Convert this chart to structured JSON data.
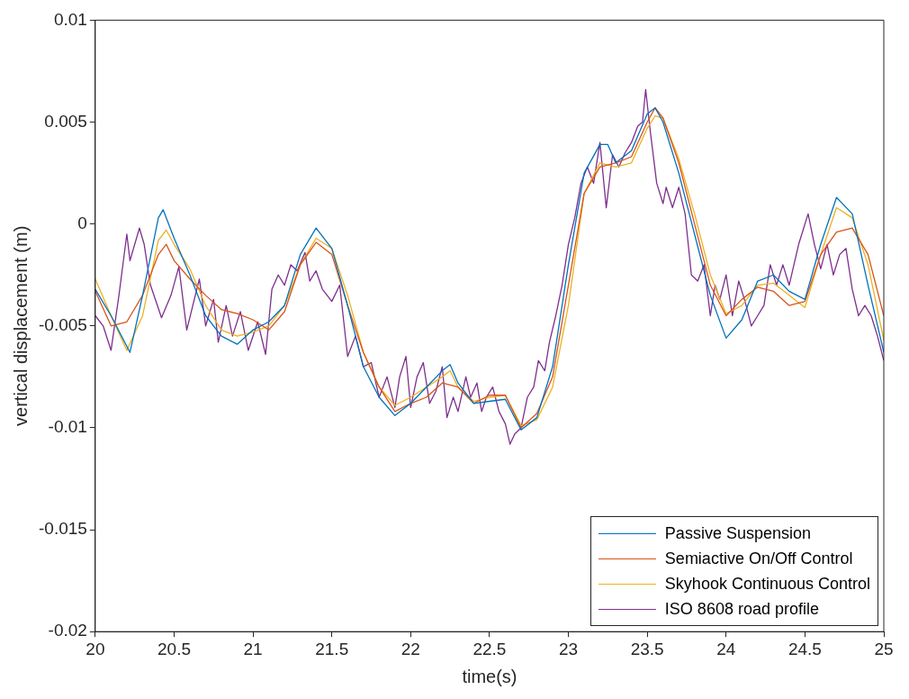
{
  "chart_data": {
    "type": "line",
    "xlabel": "time(s)",
    "ylabel": "vertical displacement (m)",
    "xlim": [
      20,
      25
    ],
    "ylim": [
      -0.02,
      0.01
    ],
    "xticks": [
      20,
      20.5,
      21,
      21.5,
      22,
      22.5,
      23,
      23.5,
      24,
      24.5,
      25
    ],
    "yticks": [
      -0.02,
      -0.015,
      -0.01,
      -0.005,
      0,
      0.005,
      0.01
    ],
    "grid": false,
    "legend": "bottom right",
    "marker": "none",
    "line_style": "solid",
    "series": [
      {
        "name": "Passive Suspension",
        "color": "#0072bd",
        "x": [
          20,
          20.1,
          20.22,
          20.3,
          20.4,
          20.43,
          20.5,
          20.6,
          20.7,
          20.8,
          20.9,
          21,
          21.1,
          21.2,
          21.3,
          21.4,
          21.5,
          21.6,
          21.7,
          21.8,
          21.9,
          22,
          22.1,
          22.2,
          22.25,
          22.3,
          22.4,
          22.5,
          22.6,
          22.7,
          22.8,
          22.9,
          23,
          23.1,
          23.2,
          23.25,
          23.3,
          23.4,
          23.5,
          23.55,
          23.6,
          23.7,
          23.8,
          23.9,
          24,
          24.1,
          24.2,
          24.3,
          24.4,
          24.5,
          24.6,
          24.7,
          24.8,
          24.9,
          25
        ],
        "values": [
          -0.0032,
          -0.0045,
          -0.0063,
          -0.0035,
          0.0003,
          0.0007,
          -0.0007,
          -0.0025,
          -0.0045,
          -0.0055,
          -0.0059,
          -0.0052,
          -0.0048,
          -0.004,
          -0.0015,
          -0.0002,
          -0.0012,
          -0.004,
          -0.007,
          -0.0085,
          -0.0094,
          -0.0088,
          -0.008,
          -0.0072,
          -0.0069,
          -0.0078,
          -0.0088,
          -0.0087,
          -0.0086,
          -0.0101,
          -0.0095,
          -0.007,
          -0.002,
          0.0025,
          0.0039,
          0.0039,
          0.003,
          0.0036,
          0.0054,
          0.0057,
          0.005,
          0.0025,
          -0.0005,
          -0.0035,
          -0.0056,
          -0.0047,
          -0.0028,
          -0.0025,
          -0.0033,
          -0.0037,
          -0.001,
          0.0013,
          0.0005,
          -0.003,
          -0.0063
        ]
      },
      {
        "name": "Semiactive On/Off Control",
        "color": "#d95319",
        "x": [
          20,
          20.1,
          20.2,
          20.3,
          20.4,
          20.45,
          20.5,
          20.6,
          20.7,
          20.8,
          20.9,
          21,
          21.1,
          21.2,
          21.3,
          21.4,
          21.5,
          21.6,
          21.7,
          21.8,
          21.9,
          22,
          22.1,
          22.2,
          22.3,
          22.4,
          22.5,
          22.6,
          22.7,
          22.8,
          22.9,
          23,
          23.1,
          23.2,
          23.3,
          23.4,
          23.5,
          23.55,
          23.6,
          23.7,
          23.8,
          23.9,
          24,
          24.1,
          24.2,
          24.3,
          24.4,
          24.5,
          24.6,
          24.7,
          24.8,
          24.9,
          25
        ],
        "values": [
          -0.0033,
          -0.005,
          -0.0048,
          -0.0035,
          -0.0015,
          -0.001,
          -0.0018,
          -0.0027,
          -0.0035,
          -0.0042,
          -0.0044,
          -0.0047,
          -0.0052,
          -0.0043,
          -0.002,
          -0.0009,
          -0.0015,
          -0.004,
          -0.0063,
          -0.008,
          -0.0092,
          -0.0088,
          -0.0085,
          -0.0078,
          -0.008,
          -0.0088,
          -0.0084,
          -0.0084,
          -0.01,
          -0.0093,
          -0.0075,
          -0.003,
          0.0015,
          0.0028,
          0.003,
          0.0033,
          0.005,
          0.0057,
          0.0052,
          0.003,
          0,
          -0.003,
          -0.0045,
          -0.0037,
          -0.0031,
          -0.0033,
          -0.004,
          -0.0038,
          -0.0015,
          -0.0004,
          -0.0002,
          -0.0015,
          -0.0045
        ]
      },
      {
        "name": "Skyhook Continuous Control",
        "color": "#edb120",
        "x": [
          20,
          20.1,
          20.2,
          20.3,
          20.4,
          20.45,
          20.5,
          20.6,
          20.7,
          20.8,
          20.9,
          21,
          21.1,
          21.2,
          21.3,
          21.4,
          21.5,
          21.6,
          21.7,
          21.8,
          21.9,
          22,
          22.1,
          22.2,
          22.25,
          22.3,
          22.4,
          22.5,
          22.6,
          22.7,
          22.8,
          22.9,
          23,
          23.1,
          23.2,
          23.3,
          23.4,
          23.5,
          23.55,
          23.6,
          23.7,
          23.8,
          23.9,
          24,
          24.1,
          24.2,
          24.3,
          24.4,
          24.5,
          24.6,
          24.7,
          24.8,
          24.9,
          25
        ],
        "values": [
          -0.0027,
          -0.0045,
          -0.0062,
          -0.0045,
          -0.0008,
          -0.0003,
          -0.001,
          -0.0022,
          -0.004,
          -0.0052,
          -0.0055,
          -0.0053,
          -0.005,
          -0.004,
          -0.002,
          -0.0007,
          -0.0012,
          -0.0035,
          -0.0063,
          -0.008,
          -0.0089,
          -0.0085,
          -0.008,
          -0.0075,
          -0.0072,
          -0.008,
          -0.0087,
          -0.0085,
          -0.0084,
          -0.0099,
          -0.0096,
          -0.008,
          -0.004,
          0.0015,
          0.003,
          0.0028,
          0.003,
          0.0047,
          0.0053,
          0.0052,
          0.0032,
          0.0005,
          -0.0025,
          -0.0044,
          -0.004,
          -0.003,
          -0.0029,
          -0.0035,
          -0.0041,
          -0.0015,
          0.0008,
          0.0003,
          -0.002,
          -0.0057
        ]
      },
      {
        "name": "ISO 8608 road profile",
        "color": "#7e2f8e",
        "x": [
          20,
          20.05,
          20.1,
          20.15,
          20.2,
          20.22,
          20.25,
          20.28,
          20.31,
          20.35,
          20.42,
          20.48,
          20.53,
          20.58,
          20.66,
          20.7,
          20.75,
          20.78,
          20.83,
          20.87,
          20.92,
          20.97,
          21.03,
          21.08,
          21.12,
          21.16,
          21.2,
          21.24,
          21.28,
          21.33,
          21.36,
          21.4,
          21.44,
          21.5,
          21.55,
          21.6,
          21.65,
          21.7,
          21.75,
          21.8,
          21.85,
          21.9,
          21.93,
          21.97,
          22,
          22.04,
          22.08,
          22.12,
          22.16,
          22.2,
          22.23,
          22.27,
          22.3,
          22.35,
          22.38,
          22.42,
          22.45,
          22.48,
          22.52,
          22.56,
          22.6,
          22.63,
          22.66,
          22.7,
          22.74,
          22.78,
          22.81,
          22.85,
          22.88,
          22.92,
          22.96,
          23,
          23.04,
          23.08,
          23.12,
          23.16,
          23.2,
          23.24,
          23.28,
          23.32,
          23.36,
          23.4,
          23.44,
          23.47,
          23.49,
          23.52,
          23.56,
          23.6,
          23.62,
          23.66,
          23.7,
          23.74,
          23.78,
          23.82,
          23.86,
          23.9,
          23.93,
          23.96,
          24,
          24.04,
          24.08,
          24.12,
          24.16,
          24.2,
          24.24,
          24.28,
          24.32,
          24.36,
          24.4,
          24.46,
          24.52,
          24.56,
          24.6,
          24.64,
          24.68,
          24.72,
          24.76,
          24.8,
          24.84,
          24.88,
          24.92,
          24.96,
          25
        ],
        "values": [
          -0.0045,
          -0.005,
          -0.0062,
          -0.0035,
          -0.0005,
          -0.0018,
          -0.001,
          -0.0002,
          -0.001,
          -0.003,
          -0.0046,
          -0.0035,
          -0.0021,
          -0.0052,
          -0.0027,
          -0.005,
          -0.0037,
          -0.0058,
          -0.004,
          -0.0055,
          -0.0043,
          -0.0062,
          -0.0048,
          -0.0064,
          -0.0032,
          -0.0025,
          -0.003,
          -0.002,
          -0.0023,
          -0.0014,
          -0.0028,
          -0.0023,
          -0.0032,
          -0.0038,
          -0.003,
          -0.0065,
          -0.0055,
          -0.007,
          -0.0068,
          -0.0085,
          -0.0075,
          -0.009,
          -0.0075,
          -0.0065,
          -0.009,
          -0.0075,
          -0.0068,
          -0.0088,
          -0.0082,
          -0.007,
          -0.0095,
          -0.0085,
          -0.0092,
          -0.0075,
          -0.0085,
          -0.0078,
          -0.0092,
          -0.0085,
          -0.008,
          -0.0092,
          -0.0098,
          -0.0108,
          -0.0103,
          -0.01,
          -0.0085,
          -0.008,
          -0.0067,
          -0.0072,
          -0.0058,
          -0.0045,
          -0.003,
          -0.001,
          0.0003,
          0.002,
          0.0028,
          0.002,
          0.004,
          0.0008,
          0.0034,
          0.0028,
          0.0035,
          0.004,
          0.0048,
          0.005,
          0.0066,
          0.0045,
          0.002,
          0.001,
          0.0018,
          0.0008,
          0.0018,
          0.0005,
          -0.0025,
          -0.0028,
          -0.002,
          -0.0045,
          -0.003,
          -0.0037,
          -0.0025,
          -0.0045,
          -0.0028,
          -0.0038,
          -0.005,
          -0.0045,
          -0.004,
          -0.002,
          -0.003,
          -0.002,
          -0.003,
          -0.001,
          0.0005,
          -0.001,
          -0.0022,
          -0.001,
          -0.0025,
          -0.0015,
          -0.0012,
          -0.0032,
          -0.0045,
          -0.004,
          -0.0045,
          -0.0055,
          -0.0067
        ]
      }
    ]
  }
}
